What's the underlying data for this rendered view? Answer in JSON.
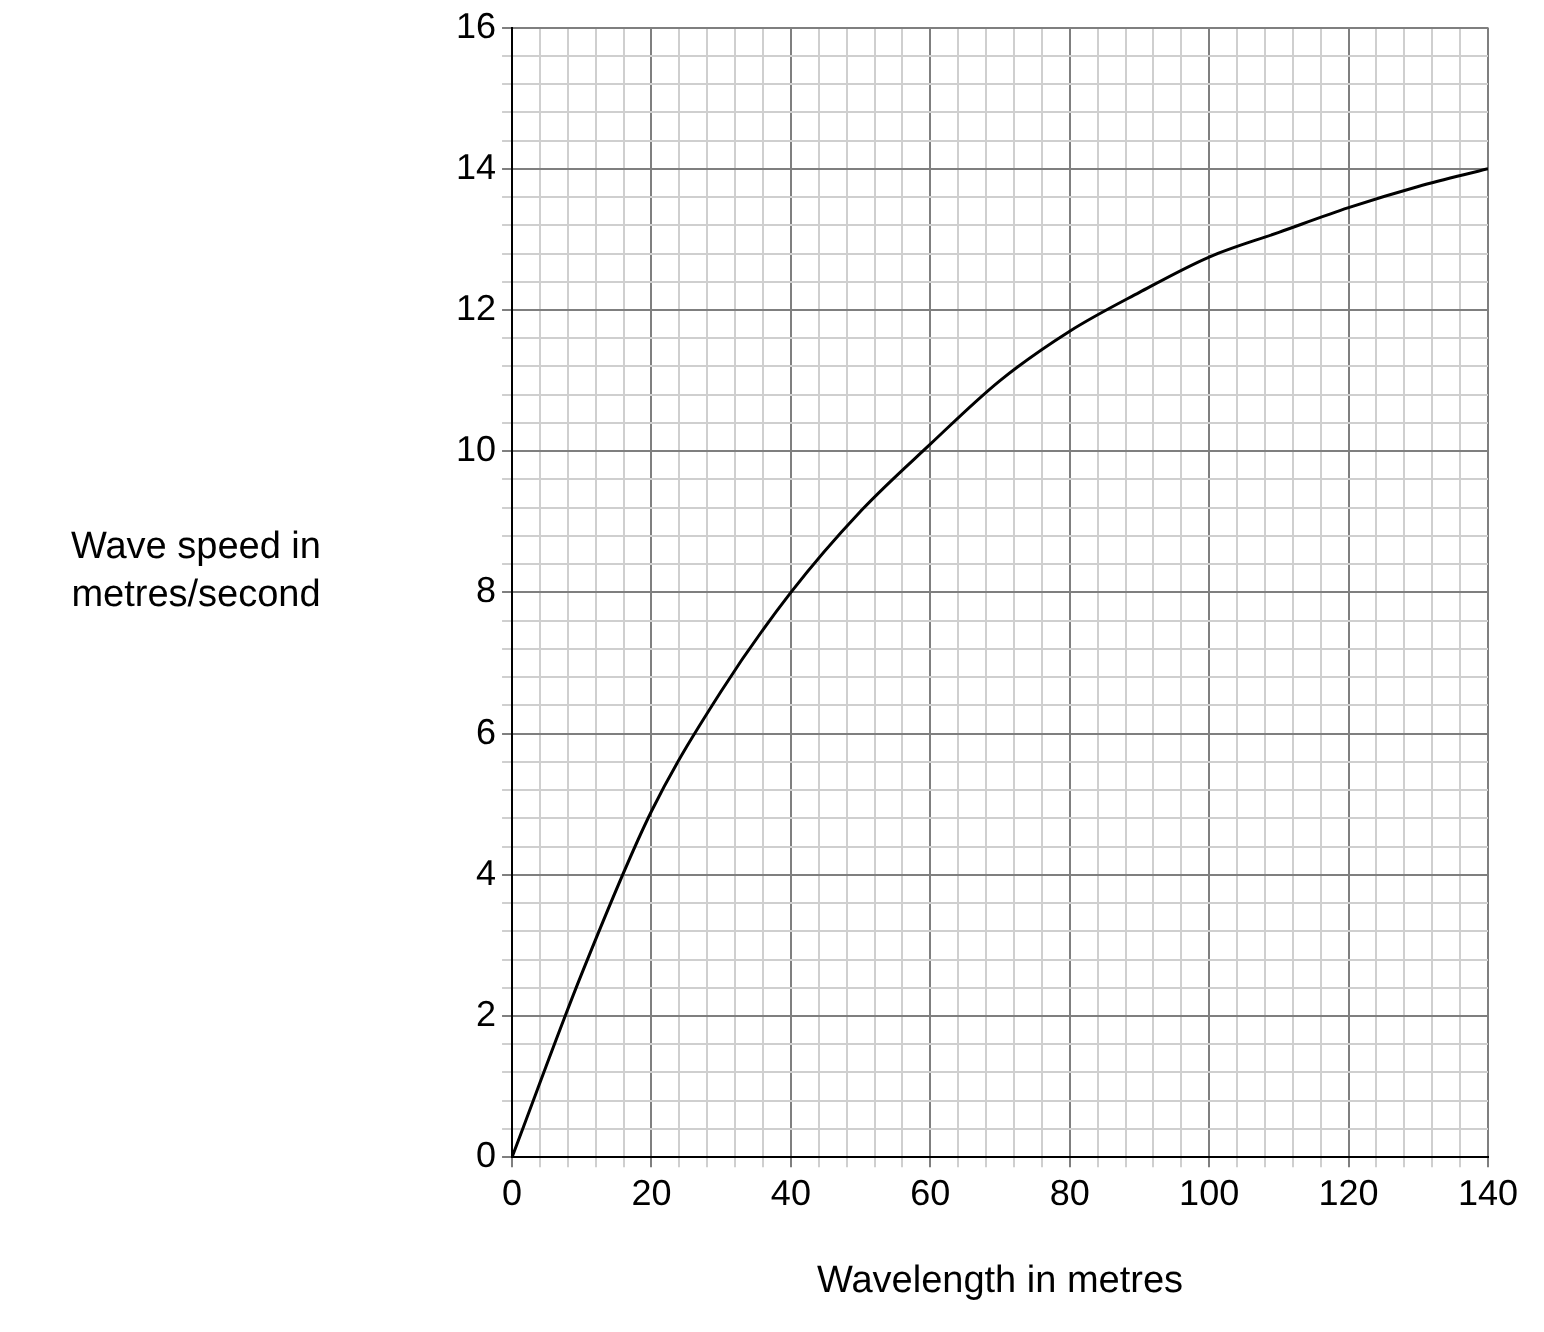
{
  "chart_data": {
    "type": "line",
    "xlabel": "Wavelength in metres",
    "ylabel": "Wave speed in metres/second",
    "x": [
      0,
      10,
      20,
      30,
      40,
      50,
      60,
      70,
      80,
      90,
      100,
      110,
      120,
      130,
      140
    ],
    "series": [
      {
        "color": "#000000",
        "values": [
          0,
          2.6,
          4.9,
          6.6,
          8.0,
          9.15,
          10.1,
          11.0,
          11.7,
          12.25,
          12.75,
          13.1,
          13.45,
          13.75,
          14.0
        ]
      }
    ],
    "xlim": [
      0,
      140
    ],
    "ylim": [
      0,
      16
    ],
    "xticks": [
      0,
      {
        "value": 4,
        "label": null
      },
      {
        "value": 8,
        "label": null
      },
      {
        "value": 12,
        "label": null
      },
      {
        "value": 16,
        "label": null
      },
      20,
      {
        "value": 24,
        "label": null
      },
      {
        "value": 28,
        "label": null
      },
      {
        "value": 32,
        "label": null
      },
      {
        "value": 36,
        "label": null
      },
      40,
      {
        "value": 44,
        "label": null
      },
      {
        "value": 48,
        "label": null
      },
      {
        "value": 52,
        "label": null
      },
      {
        "value": 56,
        "label": null
      },
      60,
      {
        "value": 64,
        "label": null
      },
      {
        "value": 68,
        "label": null
      },
      {
        "value": 72,
        "label": null
      },
      {
        "value": 76,
        "label": null
      },
      80,
      {
        "value": 84,
        "label": null
      },
      {
        "value": 88,
        "label": null
      },
      {
        "value": 92,
        "label": null
      },
      {
        "value": 96,
        "label": null
      },
      100,
      {
        "value": 104,
        "label": null
      },
      {
        "value": 108,
        "label": null
      },
      {
        "value": 112,
        "label": null
      },
      {
        "value": 116,
        "label": null
      },
      120,
      {
        "value": 124,
        "label": null
      },
      {
        "value": 128,
        "label": null
      },
      {
        "value": 132,
        "label": null
      },
      {
        "value": 136,
        "label": null
      },
      140
    ],
    "yticks": [
      0,
      {
        "value": 0.4,
        "label": null
      },
      {
        "value": 0.8,
        "label": null
      },
      {
        "value": 1.2,
        "label": null
      },
      {
        "value": 1.6,
        "label": null
      },
      2,
      {
        "value": 2.4,
        "label": null
      },
      {
        "value": 2.8,
        "label": null
      },
      {
        "value": 3.2,
        "label": null
      },
      {
        "value": 3.6,
        "label": null
      },
      4,
      {
        "value": 4.4,
        "label": null
      },
      {
        "value": 4.8,
        "label": null
      },
      {
        "value": 5.2,
        "label": null
      },
      {
        "value": 5.6,
        "label": null
      },
      6,
      {
        "value": 6.4,
        "label": null
      },
      {
        "value": 6.8,
        "label": null
      },
      {
        "value": 7.2,
        "label": null
      },
      {
        "value": 7.6,
        "label": null
      },
      8,
      {
        "value": 8.4,
        "label": null
      },
      {
        "value": 8.8,
        "label": null
      },
      {
        "value": 9.2,
        "label": null
      },
      {
        "value": 9.6,
        "label": null
      },
      10,
      {
        "value": 10.4,
        "label": null
      },
      {
        "value": 10.8,
        "label": null
      },
      {
        "value": 11.2,
        "label": null
      },
      {
        "value": 11.6,
        "label": null
      },
      12,
      {
        "value": 12.4,
        "label": null
      },
      {
        "value": 12.8,
        "label": null
      },
      {
        "value": 13.2,
        "label": null
      },
      {
        "value": 13.6,
        "label": null
      },
      14,
      {
        "value": 14.4,
        "label": null
      },
      {
        "value": 14.8,
        "label": null
      },
      {
        "value": 15.2,
        "label": null
      },
      {
        "value": 15.6,
        "label": null
      },
      16
    ],
    "grid": true,
    "marker": "none",
    "line_style": "solid",
    "legend": false
  }
}
